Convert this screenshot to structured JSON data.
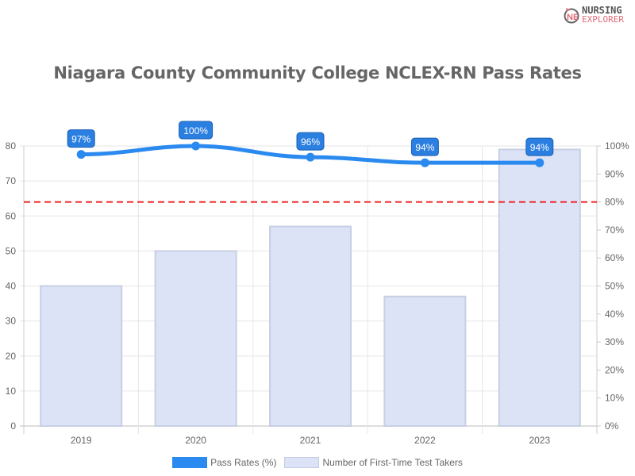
{
  "logo": {
    "line1": "NURSING",
    "line2": "EXPLORER"
  },
  "chart_data": {
    "type": "bar+line",
    "title": "Niagara County Community College NCLEX-RN Pass Rates",
    "categories": [
      "2019",
      "2020",
      "2021",
      "2022",
      "2023"
    ],
    "series": [
      {
        "name": "Pass Rates (%)",
        "type": "line",
        "axis": "right",
        "values": [
          97,
          100,
          96,
          94,
          94
        ],
        "labels": [
          "97%",
          "100%",
          "96%",
          "94%",
          "94%"
        ],
        "color": "#2b8af0"
      },
      {
        "name": "Number of First-Time Test Takers",
        "type": "bar",
        "axis": "left",
        "values": [
          40,
          50,
          57,
          37,
          79
        ],
        "color": "#dde3f7"
      }
    ],
    "left_axis": {
      "ylim": [
        0,
        80
      ],
      "ticks": [
        "0",
        "10",
        "20",
        "30",
        "40",
        "50",
        "60",
        "70",
        "80"
      ]
    },
    "right_axis": {
      "ylim": [
        0,
        100
      ],
      "ticks": [
        "0%",
        "10%",
        "20%",
        "30%",
        "40%",
        "50%",
        "60%",
        "70%",
        "80%",
        "90%",
        "100%"
      ]
    },
    "reference_line": {
      "value": 80,
      "axis": "right",
      "style": "dashed",
      "color": "#ee2222"
    },
    "grid": true,
    "legend": "bottom"
  }
}
